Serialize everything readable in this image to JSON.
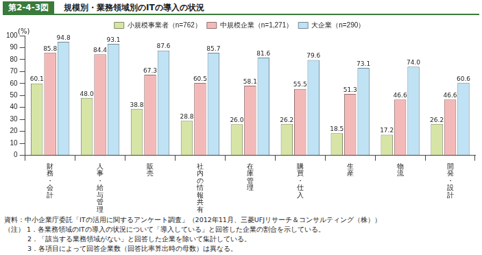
{
  "chart_data": {
    "type": "bar",
    "figure_label": "第2-4-3図",
    "title": "規模別・業務領域別のITの導入の状況",
    "y_label": "(%)",
    "categories": [
      "財務・会計",
      "人事・給与管理",
      "販売",
      "社内の情報共有",
      "在庫管理",
      "購買・仕入",
      "生産",
      "物流",
      "開発・設計"
    ],
    "series": [
      {
        "name": "小規模事業者（n=762）",
        "color": "#d6e5a6",
        "values": [
          60.1,
          48.0,
          38.8,
          28.8,
          26.0,
          26.2,
          18.5,
          17.2,
          26.2
        ],
        "value_labels": [
          "60.1",
          "48.0",
          "38.8",
          "28.8",
          "26.0",
          "26.2",
          "18.5",
          "17.2",
          "26.2"
        ]
      },
      {
        "name": "中規模企業（n=1,271）",
        "color": "#f3b9b9",
        "values": [
          85.8,
          84.4,
          67.3,
          60.5,
          58.1,
          55.5,
          51.3,
          46.6,
          46.6
        ],
        "value_labels": [
          "85.8",
          "84.4",
          "67.3",
          "60.5",
          "58.1",
          "55.5",
          "51.3",
          "46.6",
          "46.6"
        ]
      },
      {
        "name": "大企業（n=290）",
        "color": "#bfe2f4",
        "values": [
          94.8,
          93.1,
          87.6,
          85.7,
          81.6,
          79.6,
          73.1,
          74.0,
          60.6
        ],
        "value_labels": [
          "94.8",
          "93.1",
          "87.6",
          "85.7",
          "81.6",
          "79.6",
          "73.1",
          "74.0",
          "60.6"
        ]
      }
    ],
    "ylim": [
      0,
      100
    ],
    "yticks": [
      0,
      10,
      20,
      30,
      40,
      50,
      60,
      70,
      80,
      90,
      100
    ],
    "grid": false,
    "legend": "top",
    "data_labels": true,
    "source": "資料：中小企業庁委託「ITの活用に関するアンケート調査」（2012年11月、三菱UFJリサーチ＆コンサルティング（株））",
    "notes": [
      "（注） 1．各業務領域のITの導入の状況について「導入している」と回答した企業の割合を示している。",
      "2．「該当する業務領域がない」と回答した企業を除いて集計している。",
      "3．各項目によって回答企業数（回答比率算出時の母数）は異なる。"
    ]
  }
}
